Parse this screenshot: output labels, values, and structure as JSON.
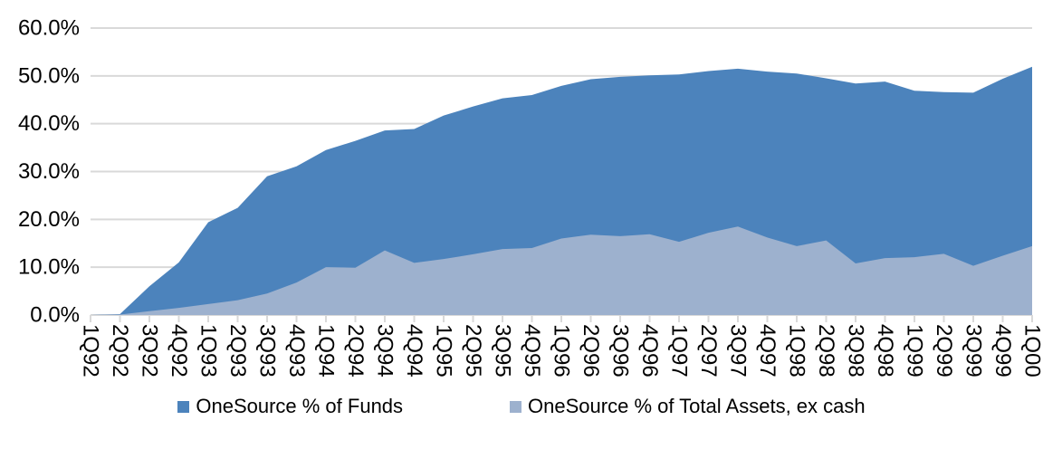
{
  "chart_data": {
    "type": "area",
    "title": "",
    "xlabel": "",
    "ylabel": "",
    "ylim": [
      0,
      60
    ],
    "grid": true,
    "legend_position": "bottom",
    "y_ticks": [
      "0.0%",
      "10.0%",
      "20.0%",
      "30.0%",
      "40.0%",
      "50.0%",
      "60.0%"
    ],
    "categories": [
      "1Q92",
      "2Q92",
      "3Q92",
      "4Q92",
      "1Q93",
      "2Q93",
      "3Q93",
      "4Q93",
      "1Q94",
      "2Q94",
      "3Q94",
      "4Q94",
      "1Q95",
      "2Q95",
      "3Q95",
      "4Q95",
      "1Q96",
      "2Q96",
      "3Q96",
      "4Q96",
      "1Q97",
      "2Q97",
      "3Q97",
      "4Q97",
      "1Q98",
      "2Q98",
      "3Q98",
      "4Q98",
      "1Q99",
      "2Q99",
      "3Q99",
      "4Q99",
      "1Q00"
    ],
    "series": [
      {
        "name": "OneSource % of Funds",
        "color": "#4C83BC",
        "values": [
          0.0,
          0.2,
          6.0,
          11.0,
          19.4,
          22.4,
          29.0,
          31.1,
          34.5,
          36.4,
          38.6,
          38.9,
          41.7,
          43.6,
          45.3,
          46.0,
          47.9,
          49.3,
          49.8,
          50.1,
          50.3,
          51.0,
          51.5,
          50.9,
          50.5,
          49.5,
          48.4,
          48.8,
          46.9,
          46.6,
          46.5,
          49.4,
          51.9
        ]
      },
      {
        "name": "OneSource % of Total Assets, ex cash",
        "color": "#9DB1CE",
        "values": [
          0.0,
          0.1,
          0.8,
          1.5,
          2.3,
          3.1,
          4.5,
          6.8,
          10.0,
          9.9,
          13.5,
          10.9,
          11.7,
          12.7,
          13.8,
          14.0,
          16.0,
          16.8,
          16.5,
          16.9,
          15.3,
          17.2,
          18.5,
          16.2,
          14.4,
          15.6,
          10.8,
          11.9,
          12.1,
          12.8,
          10.3,
          12.4,
          14.4
        ]
      }
    ],
    "colors": {
      "grid": "#D9D9D9",
      "axis": "#D9D9D9",
      "text": "#000000",
      "background": "#FFFFFF"
    }
  }
}
